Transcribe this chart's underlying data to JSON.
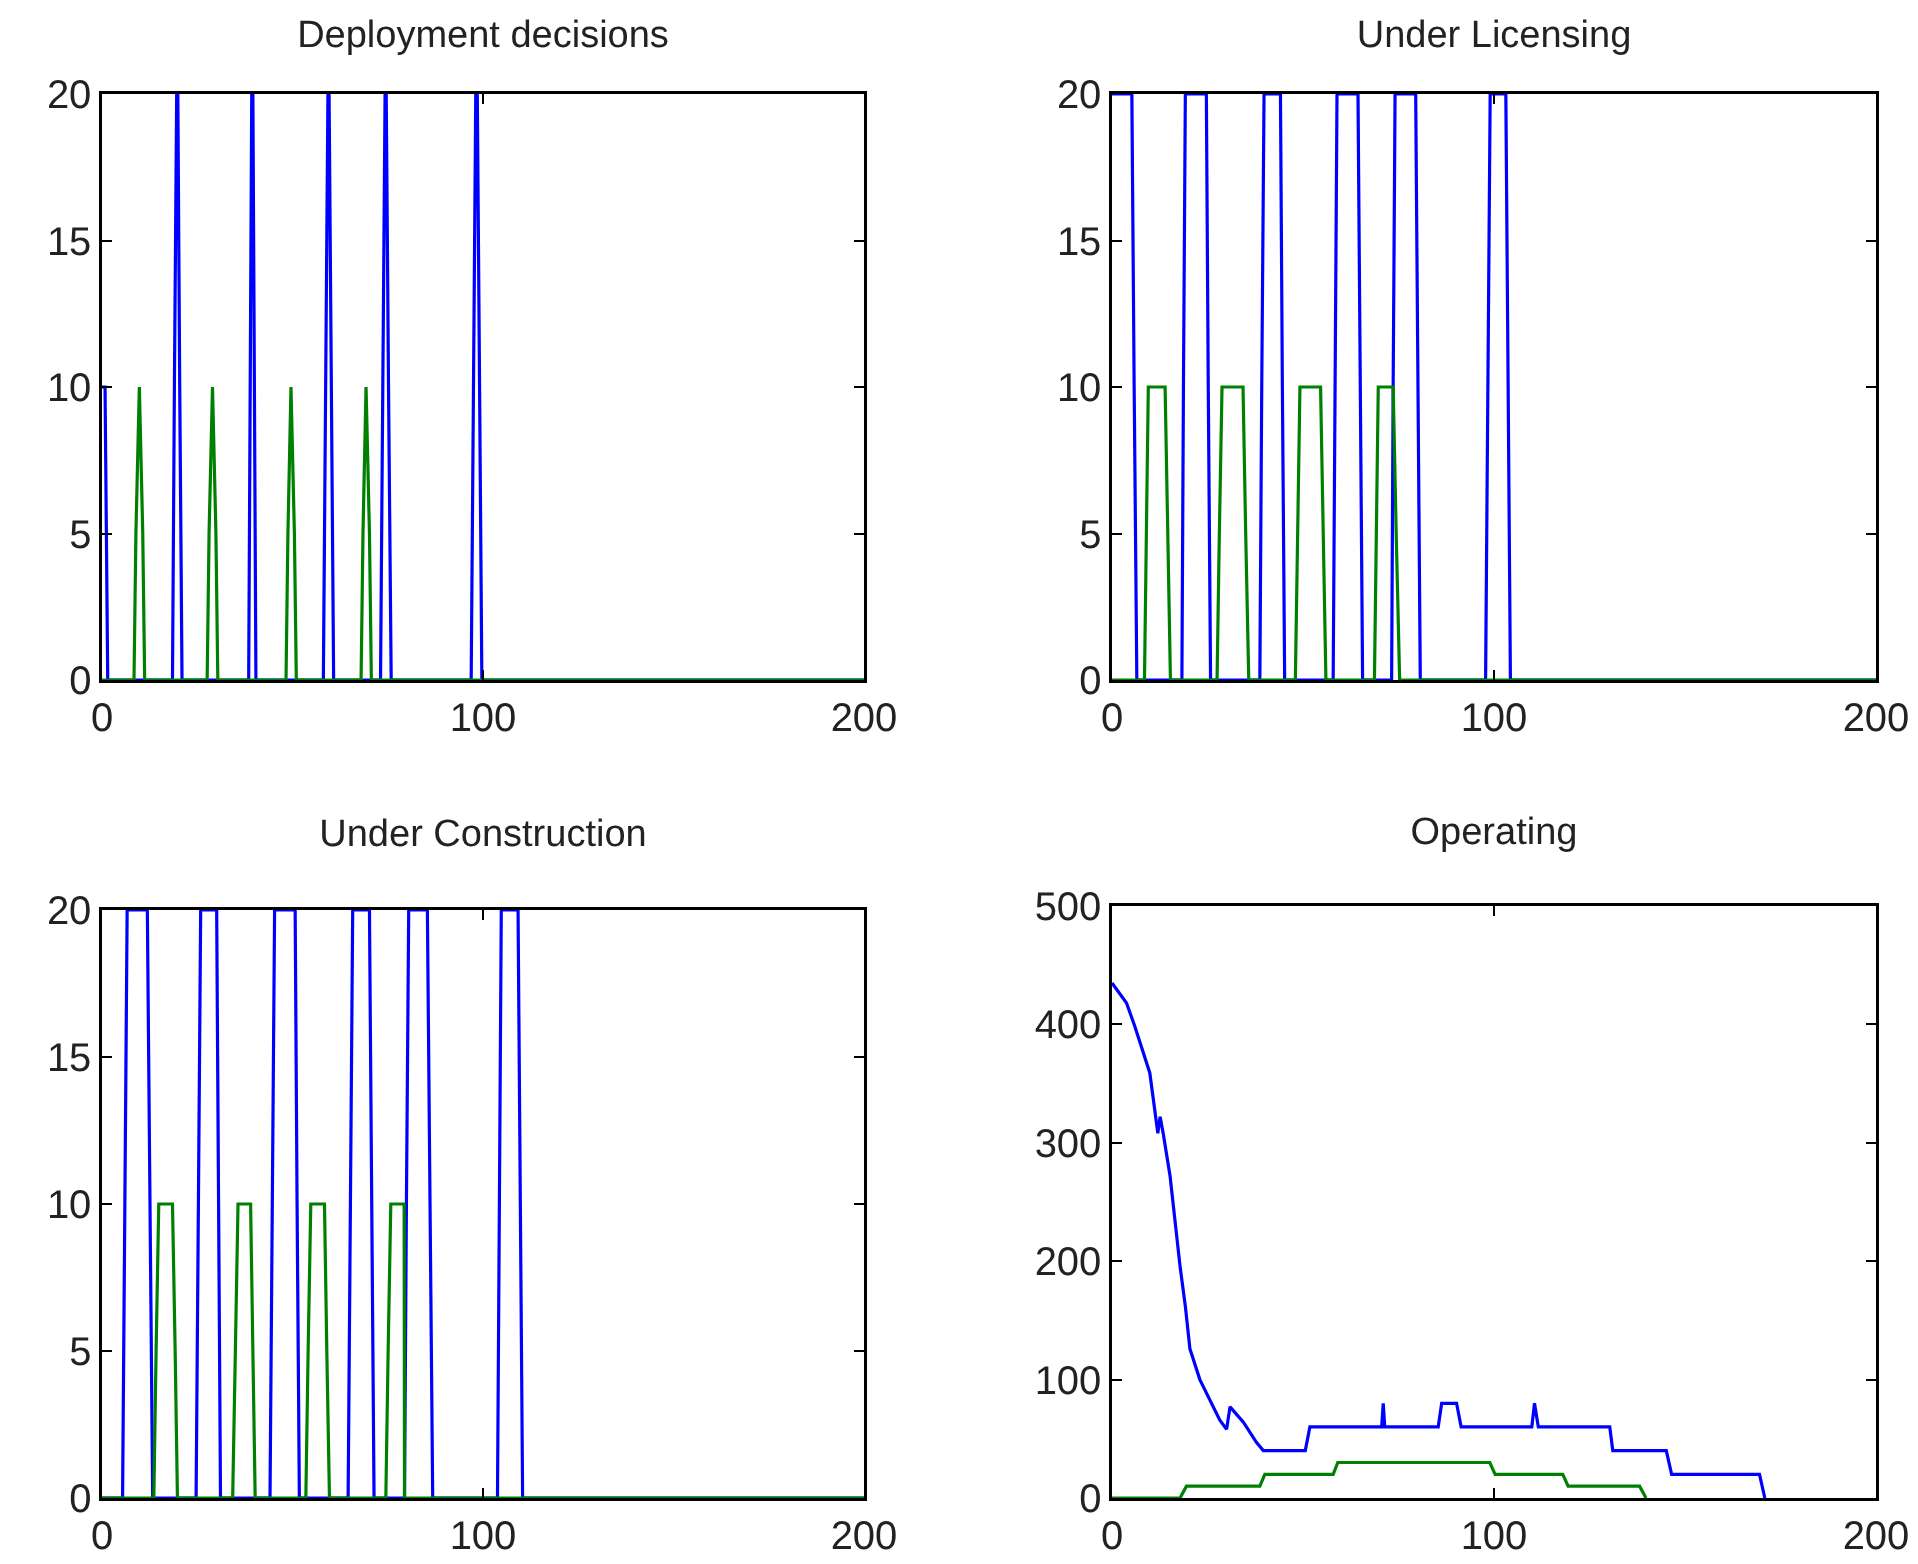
{
  "chart_data": [
    {
      "type": "line",
      "title": "Deployment decisions",
      "xlim": [
        0,
        200
      ],
      "xticks": [
        0,
        100,
        200
      ],
      "ylim": [
        0,
        20
      ],
      "yticks": [
        0,
        5,
        10,
        15,
        20
      ],
      "grid": false,
      "series": [
        {
          "color": "#0000ff",
          "x": [
            0,
            0.8,
            1.5,
            18.5,
            19,
            19.6,
            19.9,
            20.4,
            21,
            38.5,
            38.9,
            39.3,
            39.6,
            40,
            40.4,
            58.1,
            58.7,
            59.3,
            59.6,
            60.2,
            60.8,
            73.1,
            73.7,
            74.3,
            74.6,
            75.2,
            75.9,
            96.9,
            97.5,
            98.1,
            98.5,
            99.1,
            99.7,
            200
          ],
          "values": [
            10,
            10,
            0,
            0,
            10,
            20,
            20,
            10,
            0,
            0,
            10,
            20,
            20,
            10,
            0,
            0,
            10,
            20,
            20,
            10,
            0,
            0,
            10,
            20,
            20,
            10,
            0,
            0,
            10,
            20,
            20,
            10,
            0,
            0
          ]
        },
        {
          "color": "#008000",
          "x": [
            0,
            8.4,
            8.9,
            9.8,
            10.7,
            11.2,
            27.6,
            28.1,
            29,
            29.9,
            30.4,
            48.3,
            48.8,
            49.6,
            50.5,
            51,
            68,
            68.5,
            69.3,
            70.2,
            70.7,
            200
          ],
          "values": [
            0,
            0,
            5,
            10,
            5,
            0,
            0,
            5,
            10,
            5,
            0,
            0,
            5,
            10,
            5,
            0,
            0,
            5,
            10,
            5,
            0,
            0
          ]
        }
      ]
    },
    {
      "type": "line",
      "title": "Under Licensing",
      "xlim": [
        0,
        200
      ],
      "xticks": [
        0,
        100,
        200
      ],
      "ylim": [
        0,
        20
      ],
      "yticks": [
        0,
        5,
        10,
        15,
        20
      ],
      "grid": false,
      "series": [
        {
          "color": "#0000ff",
          "x": [
            0,
            5.2,
            5.8,
            6.5,
            18.3,
            18.7,
            19.2,
            24.7,
            25.2,
            25.8,
            38.7,
            39.2,
            39.8,
            44.1,
            44.6,
            45.2,
            57.9,
            58.4,
            58.9,
            64.4,
            65,
            65.6,
            73.2,
            73.6,
            74.1,
            79.5,
            80.1,
            80.7,
            97.8,
            98.4,
            99,
            103.1,
            103.7,
            104.3,
            200
          ],
          "values": [
            20,
            20,
            10,
            0,
            0,
            10,
            20,
            20,
            10,
            0,
            0,
            10,
            20,
            20,
            10,
            0,
            0,
            10,
            20,
            20,
            10,
            0,
            0,
            10,
            20,
            20,
            10,
            0,
            0,
            10,
            20,
            20,
            10,
            0,
            0
          ]
        },
        {
          "color": "#008000",
          "x": [
            0,
            8.5,
            9,
            9.5,
            13.9,
            14.6,
            15.3,
            27.5,
            28.1,
            28.8,
            34.3,
            35,
            35.8,
            48,
            48.6,
            49.2,
            54.6,
            55.3,
            56,
            68.7,
            69.2,
            69.7,
            73.6,
            74.4,
            75.3,
            200
          ],
          "values": [
            0,
            0,
            5,
            10,
            10,
            5,
            0,
            0,
            5,
            10,
            10,
            5,
            0,
            0,
            5,
            10,
            10,
            5,
            0,
            0,
            5,
            10,
            10,
            5,
            0,
            0
          ]
        }
      ]
    },
    {
      "type": "line",
      "title": "Under Construction",
      "xlim": [
        0,
        200
      ],
      "xticks": [
        0,
        100,
        200
      ],
      "ylim": [
        0,
        20
      ],
      "yticks": [
        0,
        5,
        10,
        15,
        20
      ],
      "grid": false,
      "series": [
        {
          "color": "#0000ff",
          "x": [
            0,
            5.4,
            6,
            6.6,
            11.9,
            12.6,
            13.3,
            24.7,
            25.3,
            25.9,
            30.1,
            30.6,
            31.1,
            44.1,
            44.7,
            45.3,
            50.7,
            51.2,
            51.8,
            64.6,
            65.2,
            65.8,
            70.2,
            70.8,
            71.4,
            79.4,
            79.9,
            80.5,
            85.4,
            86.1,
            86.8,
            103.8,
            104.3,
            104.8,
            109.2,
            109.8,
            110.4,
            200
          ],
          "values": [
            0,
            0,
            10,
            20,
            20,
            10,
            0,
            0,
            10,
            20,
            20,
            10,
            0,
            0,
            10,
            20,
            20,
            10,
            0,
            0,
            10,
            20,
            20,
            10,
            0,
            0,
            10,
            20,
            20,
            10,
            0,
            0,
            10,
            20,
            20,
            10,
            0,
            0
          ]
        },
        {
          "color": "#008000",
          "x": [
            0,
            13.6,
            14.2,
            14.9,
            18.5,
            19.2,
            19.8,
            34.3,
            35,
            35.7,
            39,
            39.6,
            40.2,
            53.5,
            54.1,
            54.8,
            58.4,
            59,
            59.7,
            74.5,
            75.1,
            75.8,
            79.3,
            79.4,
            200
          ],
          "values": [
            0,
            0,
            5,
            10,
            10,
            5,
            0,
            0,
            5,
            10,
            10,
            5,
            0,
            0,
            5,
            10,
            10,
            5,
            0,
            0,
            5,
            10,
            10,
            0,
            0
          ]
        }
      ]
    },
    {
      "type": "line",
      "title": "Operating",
      "xlim": [
        0,
        200
      ],
      "xticks": [
        0,
        100,
        200
      ],
      "ylim": [
        0,
        500
      ],
      "yticks": [
        0,
        100,
        200,
        300,
        400,
        500
      ],
      "grid": false,
      "series": [
        {
          "color": "#0000ff",
          "x": [
            0,
            3.8,
            5.9,
            9.9,
            12,
            12.6,
            13.4,
            15.2,
            17.8,
            19.2,
            20.4,
            23,
            28.2,
            30,
            30.9,
            34.4,
            37.8,
            39.6,
            50.6,
            51.8,
            70.6,
            71,
            71.4,
            85.4,
            86.3,
            90.2,
            91.4,
            109.9,
            110.6,
            111.6,
            130.3,
            131.1,
            145.1,
            146.5,
            169.5,
            170.9
          ],
          "values": [
            435,
            418,
            399,
            359,
            308,
            322,
            308,
            272,
            196,
            162,
            126,
            100,
            66,
            58,
            77,
            64,
            47,
            40,
            40,
            60,
            60,
            80,
            60,
            60,
            80,
            80,
            60,
            60,
            80,
            60,
            60,
            40,
            40,
            20,
            20,
            0
          ]
        },
        {
          "color": "#008000",
          "x": [
            0,
            17.8,
            19.5,
            38.7,
            40,
            57.9,
            59.1,
            98.9,
            100.3,
            118,
            119.4,
            138.1,
            139.8
          ],
          "values": [
            0,
            0,
            10,
            10,
            20,
            20,
            30,
            30,
            20,
            20,
            10,
            10,
            0
          ]
        }
      ]
    }
  ]
}
